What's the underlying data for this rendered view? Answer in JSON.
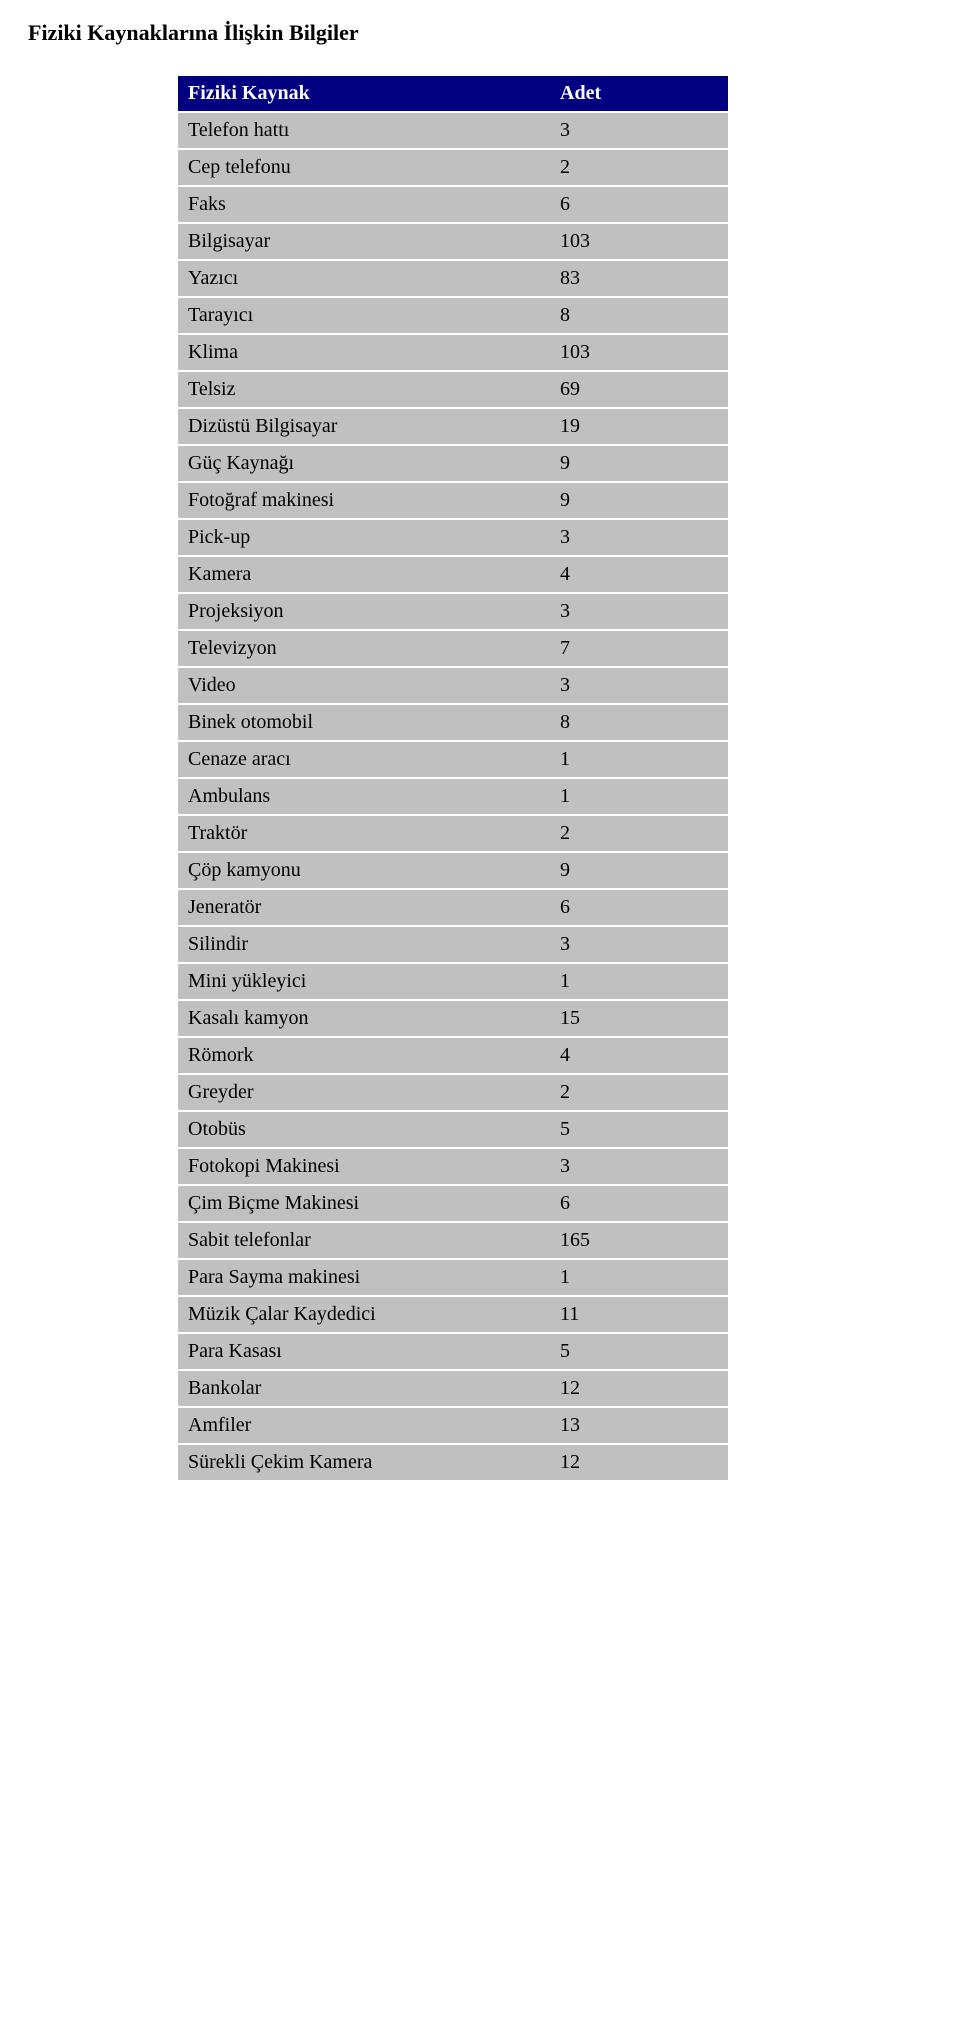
{
  "title": "Fiziki Kaynaklarına İlişkin Bilgiler",
  "header": {
    "label": "Fiziki Kaynak",
    "value": "Adet"
  },
  "rows": [
    {
      "label": "Telefon hattı",
      "value": "3"
    },
    {
      "label": "Cep telefonu",
      "value": "2"
    },
    {
      "label": "Faks",
      "value": "6"
    },
    {
      "label": "Bilgisayar",
      "value": "103"
    },
    {
      "label": "Yazıcı",
      "value": "83"
    },
    {
      "label": "Tarayıcı",
      "value": "8"
    },
    {
      "label": "Klima",
      "value": "103"
    },
    {
      "label": "Telsiz",
      "value": "69"
    },
    {
      "label": "Dizüstü Bilgisayar",
      "value": "19"
    },
    {
      "label": "Güç Kaynağı",
      "value": "9"
    },
    {
      "label": "Fotoğraf makinesi",
      "value": "9"
    },
    {
      "label": "Pick-up",
      "value": "3"
    },
    {
      "label": "Kamera",
      "value": "4"
    },
    {
      "label": "Projeksiyon",
      "value": "3"
    },
    {
      "label": "Televizyon",
      "value": "7"
    },
    {
      "label": "Video",
      "value": "3"
    },
    {
      "label": "Binek otomobil",
      "value": "8"
    },
    {
      "label": "Cenaze aracı",
      "value": "1"
    },
    {
      "label": "Ambulans",
      "value": "1"
    },
    {
      "label": "Traktör",
      "value": "2"
    },
    {
      "label": "Çöp kamyonu",
      "value": "9"
    },
    {
      "label": "Jeneratör",
      "value": "6"
    },
    {
      "label": "Silindir",
      "value": "3"
    },
    {
      "label": "Mini yükleyici",
      "value": "1"
    },
    {
      "label": "Kasalı kamyon",
      "value": "15"
    },
    {
      "label": "Römork",
      "value": "4"
    },
    {
      "label": "Greyder",
      "value": "2"
    },
    {
      "label": "Otobüs",
      "value": "5"
    },
    {
      "label": "Fotokopi Makinesi",
      "value": "3"
    },
    {
      "label": "Çim Biçme Makinesi",
      "value": "6"
    },
    {
      "label": "Sabit telefonlar",
      "value": "165"
    },
    {
      "label": "Para Sayma makinesi",
      "value": "1"
    },
    {
      "label": "Müzik Çalar Kaydedici",
      "value": "11"
    },
    {
      "label": "Para Kasası",
      "value": "5"
    },
    {
      "label": "Bankolar",
      "value": "12"
    },
    {
      "label": "Amfiler",
      "value": "13"
    },
    {
      "label": "Sürekli Çekim Kamera",
      "value": "12"
    }
  ],
  "colors": {
    "header_bg": "#000080",
    "header_text": "#ffffff",
    "row_bg": "#c0c0c0",
    "row_text": "#000000",
    "page_bg": "#ffffff"
  }
}
